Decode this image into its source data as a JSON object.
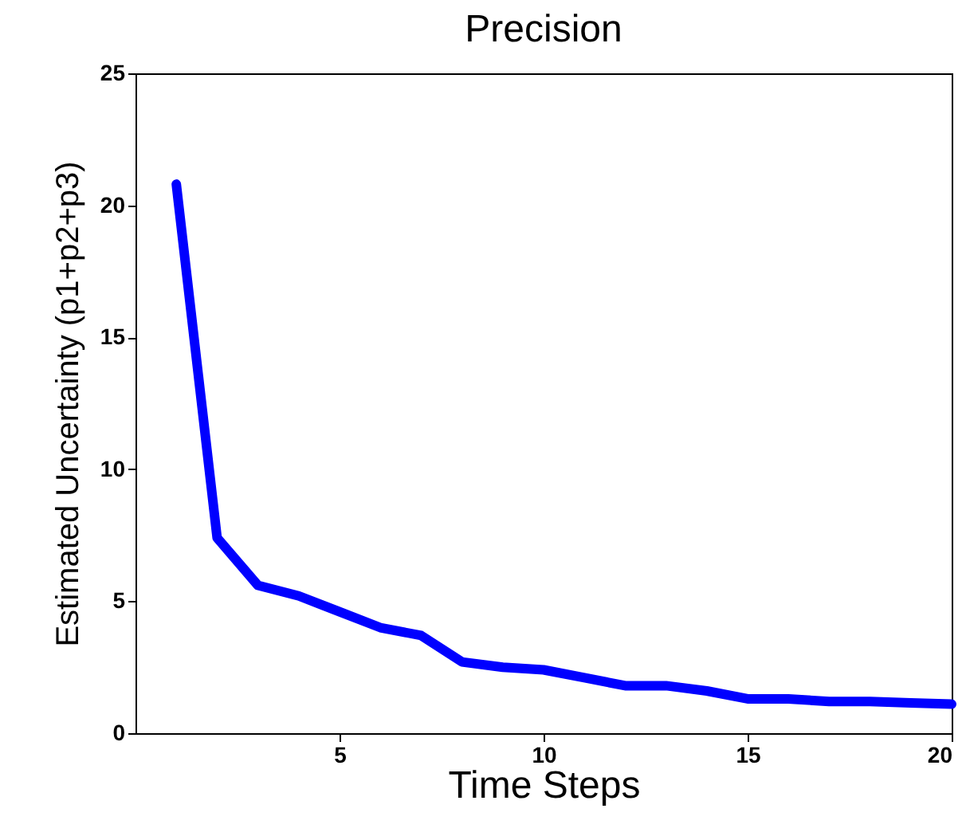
{
  "chart_data": {
    "type": "line",
    "title": "Precision",
    "xlabel": "Time Steps",
    "ylabel": "Estimated Uncertainty (p1+p2+p3)",
    "x": [
      1,
      2,
      3,
      4,
      5,
      6,
      7,
      8,
      9,
      10,
      11,
      12,
      13,
      14,
      15,
      16,
      17,
      18,
      19,
      20
    ],
    "series": [
      {
        "color": "#0000ff",
        "values": [
          20.8,
          7.4,
          5.6,
          5.2,
          4.6,
          4.0,
          3.7,
          2.7,
          2.5,
          2.4,
          2.1,
          1.8,
          1.8,
          1.6,
          1.3,
          1.3,
          1.2,
          1.2,
          1.15,
          1.1
        ]
      }
    ],
    "xlim": [
      0,
      20
    ],
    "xticks": [
      5,
      10,
      15,
      20
    ],
    "ylim": [
      0,
      25
    ],
    "yticks": [
      0,
      5,
      10,
      15,
      20,
      25
    ],
    "grid": false,
    "legend": false,
    "marker": "none",
    "line_style": "solid"
  }
}
